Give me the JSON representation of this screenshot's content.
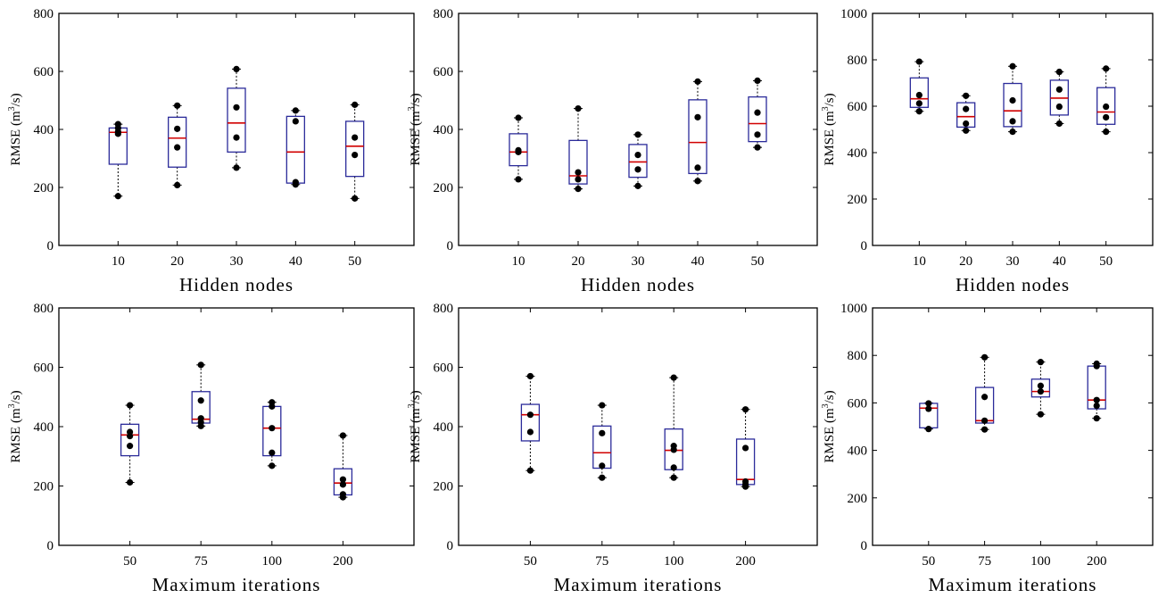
{
  "figure": {
    "y_title_main": "RMSE (m",
    "y_title_sup": "3",
    "y_title_end": "/s)"
  },
  "colors": {
    "box": "#2b2b9a",
    "median": "#d10000",
    "whisker": "#000000",
    "point": "#000000",
    "frame": "#000000"
  },
  "chart_data": [
    {
      "type": "box",
      "xlabel": "Hidden nodes",
      "ylim": [
        0,
        800
      ],
      "yticks": [
        0,
        200,
        400,
        600,
        800
      ],
      "categories": [
        "10",
        "20",
        "30",
        "40",
        "50"
      ],
      "boxes": [
        {
          "min": 170,
          "q1": 280,
          "median": 390,
          "q3": 405,
          "max": 418,
          "points": [
            170,
            385,
            392,
            405,
            418
          ]
        },
        {
          "min": 208,
          "q1": 270,
          "median": 370,
          "q3": 442,
          "max": 482,
          "points": [
            208,
            338,
            402,
            482
          ]
        },
        {
          "min": 268,
          "q1": 322,
          "median": 422,
          "q3": 542,
          "max": 608,
          "points": [
            268,
            372,
            476,
            608
          ]
        },
        {
          "min": 210,
          "q1": 215,
          "median": 322,
          "q3": 445,
          "max": 465,
          "points": [
            210,
            218,
            428,
            465
          ]
        },
        {
          "min": 162,
          "q1": 238,
          "median": 342,
          "q3": 428,
          "max": 485,
          "points": [
            162,
            312,
            372,
            485
          ]
        }
      ]
    },
    {
      "type": "box",
      "xlabel": "Hidden nodes",
      "ylim": [
        0,
        800
      ],
      "yticks": [
        0,
        200,
        400,
        600,
        800
      ],
      "categories": [
        "10",
        "20",
        "30",
        "40",
        "50"
      ],
      "boxes": [
        {
          "min": 228,
          "q1": 275,
          "median": 322,
          "q3": 385,
          "max": 440,
          "points": [
            228,
            322,
            328,
            440
          ]
        },
        {
          "min": 195,
          "q1": 212,
          "median": 240,
          "q3": 362,
          "max": 472,
          "points": [
            195,
            228,
            252,
            472
          ]
        },
        {
          "min": 205,
          "q1": 235,
          "median": 288,
          "q3": 348,
          "max": 382,
          "points": [
            205,
            262,
            312,
            382
          ]
        },
        {
          "min": 222,
          "q1": 248,
          "median": 355,
          "q3": 502,
          "max": 565,
          "points": [
            222,
            268,
            442,
            565
          ]
        },
        {
          "min": 338,
          "q1": 358,
          "median": 420,
          "q3": 512,
          "max": 568,
          "points": [
            338,
            382,
            458,
            568
          ]
        }
      ]
    },
    {
      "type": "box",
      "xlabel": "Hidden nodes",
      "ylim": [
        0,
        1000
      ],
      "yticks": [
        0,
        200,
        400,
        600,
        800,
        1000
      ],
      "categories": [
        "10",
        "20",
        "30",
        "40",
        "50"
      ],
      "boxes": [
        {
          "min": 578,
          "q1": 595,
          "median": 632,
          "q3": 722,
          "max": 792,
          "points": [
            578,
            612,
            648,
            792
          ]
        },
        {
          "min": 495,
          "q1": 510,
          "median": 555,
          "q3": 615,
          "max": 645,
          "points": [
            495,
            525,
            588,
            645
          ]
        },
        {
          "min": 490,
          "q1": 512,
          "median": 580,
          "q3": 698,
          "max": 772,
          "points": [
            490,
            535,
            625,
            772
          ]
        },
        {
          "min": 525,
          "q1": 562,
          "median": 635,
          "q3": 712,
          "max": 748,
          "points": [
            525,
            598,
            672,
            748
          ]
        },
        {
          "min": 490,
          "q1": 522,
          "median": 575,
          "q3": 680,
          "max": 762,
          "points": [
            490,
            552,
            598,
            762
          ]
        }
      ]
    },
    {
      "type": "box",
      "xlabel": "Maximum iterations",
      "ylim": [
        0,
        800
      ],
      "yticks": [
        0,
        200,
        400,
        600,
        800
      ],
      "categories": [
        "50",
        "75",
        "100",
        "200"
      ],
      "boxes": [
        {
          "min": 212,
          "q1": 302,
          "median": 372,
          "q3": 408,
          "max": 472,
          "points": [
            212,
            335,
            368,
            382,
            472
          ]
        },
        {
          "min": 402,
          "q1": 412,
          "median": 425,
          "q3": 518,
          "max": 608,
          "points": [
            402,
            415,
            428,
            488,
            608
          ]
        },
        {
          "min": 268,
          "q1": 302,
          "median": 395,
          "q3": 468,
          "max": 482,
          "points": [
            268,
            312,
            395,
            468,
            482
          ]
        },
        {
          "min": 162,
          "q1": 170,
          "median": 210,
          "q3": 258,
          "max": 370,
          "points": [
            162,
            172,
            205,
            222,
            370
          ]
        }
      ]
    },
    {
      "type": "box",
      "xlabel": "Maximum iterations",
      "ylim": [
        0,
        800
      ],
      "yticks": [
        0,
        200,
        400,
        600,
        800
      ],
      "categories": [
        "50",
        "75",
        "100",
        "200"
      ],
      "boxes": [
        {
          "min": 252,
          "q1": 352,
          "median": 440,
          "q3": 475,
          "max": 570,
          "points": [
            252,
            382,
            440,
            570
          ]
        },
        {
          "min": 228,
          "q1": 260,
          "median": 312,
          "q3": 402,
          "max": 472,
          "points": [
            228,
            268,
            378,
            472
          ]
        },
        {
          "min": 228,
          "q1": 255,
          "median": 320,
          "q3": 392,
          "max": 565,
          "points": [
            228,
            262,
            322,
            335,
            565
          ]
        },
        {
          "min": 198,
          "q1": 205,
          "median": 222,
          "q3": 358,
          "max": 458,
          "points": [
            198,
            205,
            215,
            328,
            458
          ]
        }
      ]
    },
    {
      "type": "box",
      "xlabel": "Maximum iterations",
      "ylim": [
        0,
        1000
      ],
      "yticks": [
        0,
        200,
        400,
        600,
        800,
        1000
      ],
      "categories": [
        "50",
        "75",
        "100",
        "200"
      ],
      "boxes": [
        {
          "min": 490,
          "q1": 495,
          "median": 578,
          "q3": 598,
          "max": 600,
          "points": [
            490,
            575,
            598
          ]
        },
        {
          "min": 488,
          "q1": 515,
          "median": 525,
          "q3": 665,
          "max": 792,
          "points": [
            488,
            525,
            625,
            792
          ]
        },
        {
          "min": 552,
          "q1": 625,
          "median": 648,
          "q3": 700,
          "max": 772,
          "points": [
            552,
            648,
            672,
            772
          ]
        },
        {
          "min": 535,
          "q1": 575,
          "median": 612,
          "q3": 755,
          "max": 765,
          "points": [
            535,
            588,
            612,
            755,
            765
          ]
        }
      ]
    }
  ]
}
